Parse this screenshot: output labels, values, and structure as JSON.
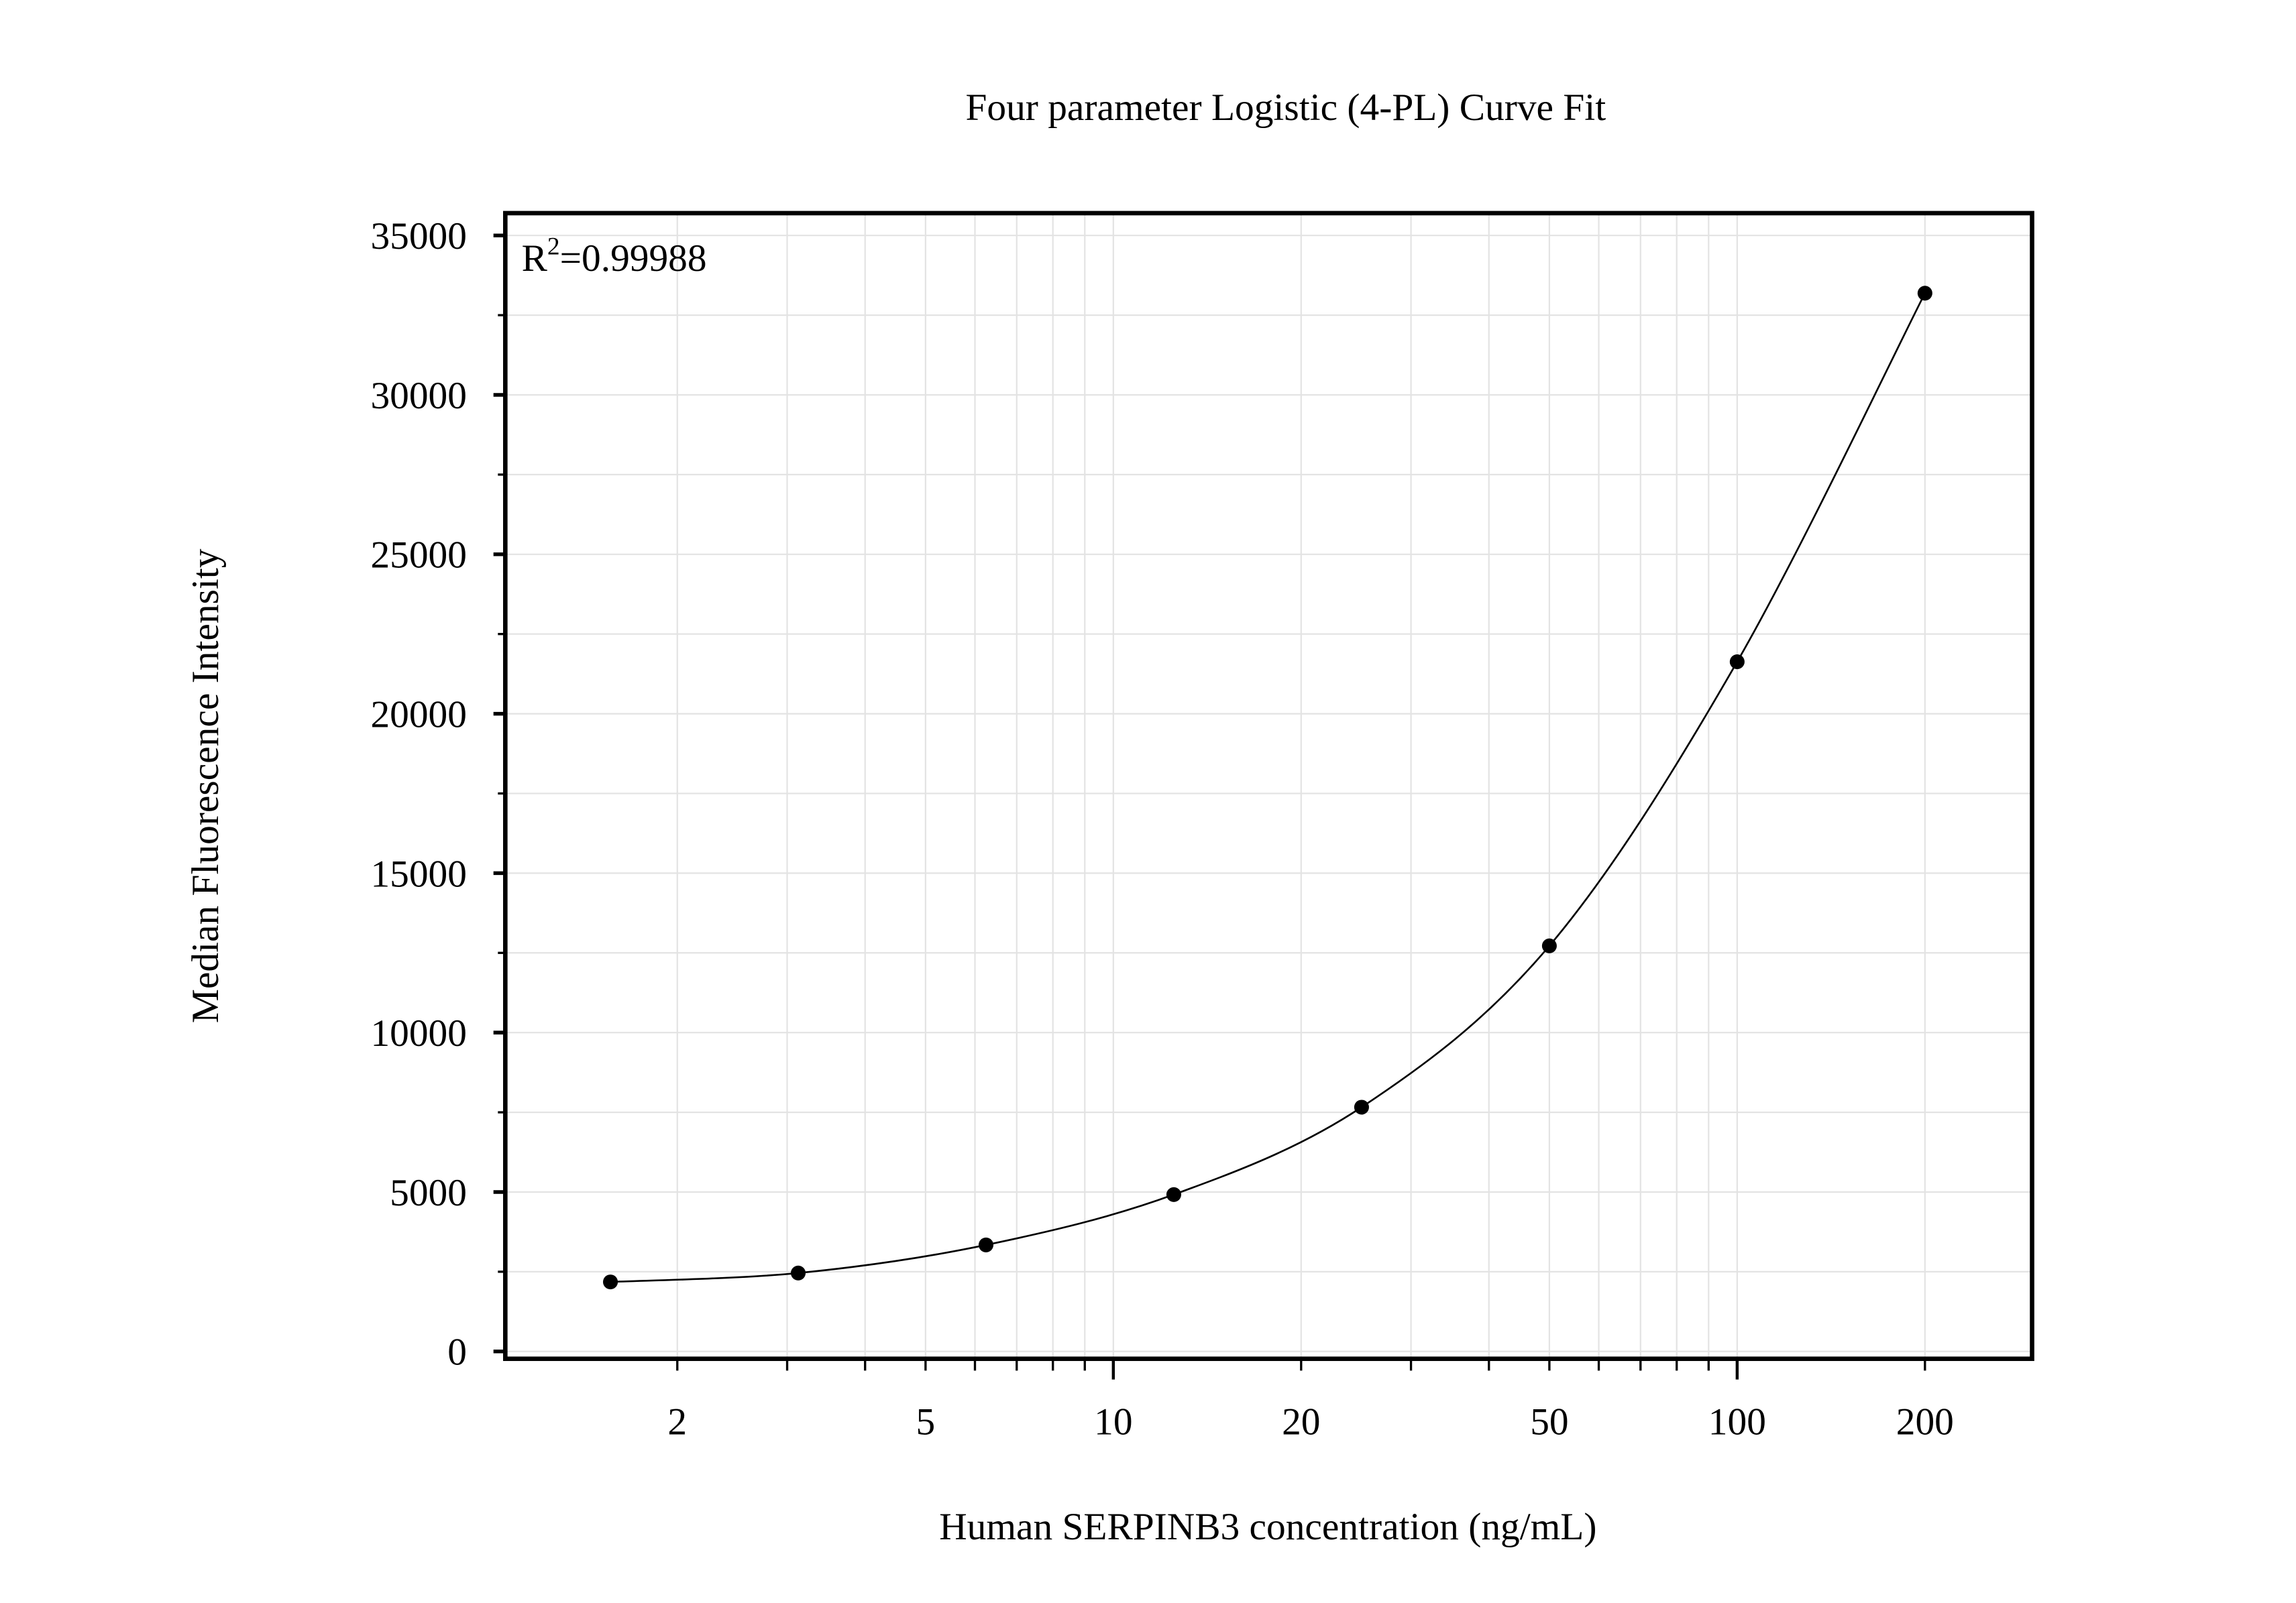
{
  "chart_data": {
    "type": "scatter",
    "title": "Four parameter Logistic (4-PL) Curve Fit",
    "xlabel": "Human SERPINB3 concentration (ng/mL)",
    "ylabel": "Median Fluorescence Intensity",
    "x_scale": "log",
    "xlim": [
      1.06,
      297
    ],
    "ylim": [
      -230,
      35700
    ],
    "x_ticks": [
      2,
      5,
      10,
      20,
      50,
      100,
      200
    ],
    "x_tick_labels": [
      "2",
      "5",
      "10",
      "20",
      "50",
      "100",
      "200"
    ],
    "y_ticks": [
      0,
      5000,
      10000,
      15000,
      20000,
      25000,
      30000,
      35000
    ],
    "y_tick_labels": [
      "0",
      "5000",
      "10000",
      "15000",
      "20000",
      "25000",
      "30000",
      "35000"
    ],
    "grid": true,
    "annotation": {
      "prefix": "R",
      "superscript": "2",
      "text": "=0.99988"
    },
    "series": [
      {
        "x": [
          1.5625,
          3.125,
          6.25,
          12.5,
          25,
          50,
          100,
          200
        ],
        "y": [
          2180,
          2460,
          3340,
          4920,
          7660,
          12720,
          21630,
          33190
        ],
        "marker": "circle",
        "fit_line": "4-PL",
        "color": "#000000"
      }
    ]
  }
}
